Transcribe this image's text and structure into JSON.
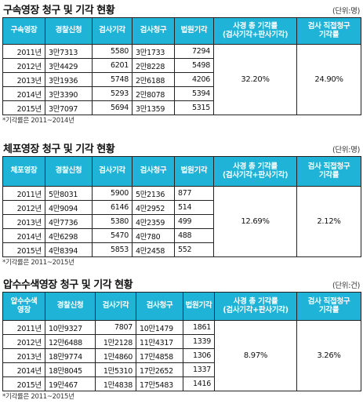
{
  "sections": [
    {
      "title": "구속영장 청구 및 기각 현황",
      "unit": "(단위:명)",
      "headers": [
        "구속영장",
        "경찰신청",
        "검사기각",
        "검사청구",
        "법원기각",
        "사경 총 기각률\n(검사기각+판사기각)",
        "검사 직접청구\n기각률"
      ],
      "rows": [
        [
          "2011년",
          "3만7313",
          "5580",
          "3만1733",
          "7294"
        ],
        [
          "2012년",
          "3만4429",
          "6201",
          "2만8228",
          "5498"
        ],
        [
          "2013년",
          "3만1936",
          "5748",
          "2만6188",
          "4206"
        ],
        [
          "2014년",
          "3만3390",
          "5293",
          "2만8078",
          "5394"
        ],
        [
          "2015년",
          "3만7097",
          "5694",
          "3만1359",
          "5315"
        ]
      ],
      "total_rate": "32.20%",
      "direct_rate": "24.90%",
      "note": "*기각률은 2011~2014년"
    },
    {
      "title": "체포영장 청구 및 기각 현황",
      "unit": "(단위:명)",
      "headers": [
        "체포영장",
        "경찰신청",
        "검사기각",
        "검사청구",
        "법원기각",
        "사경 총 기각률\n(검사기각+판사기각)",
        "검사 직접청구\n기각률"
      ],
      "rows": [
        [
          "2011년",
          "5만8031",
          "5900",
          "5만2136",
          "877"
        ],
        [
          "2012년",
          "4만9094",
          "6146",
          "4만2952",
          "514"
        ],
        [
          "2013년",
          "4만7736",
          "5380",
          "4만2359",
          "499"
        ],
        [
          "2014년",
          "4만6298",
          "5470",
          "4만780",
          "488"
        ],
        [
          "2015년",
          "4만8394",
          "5853",
          "4만2458",
          "552"
        ]
      ],
      "total_rate": "12.69%",
      "direct_rate": "2.12%",
      "note": "*기각률은 2011~2015년"
    },
    {
      "title": "압수수색영장 청구 및 기각 현황",
      "unit": "(단위:건)",
      "headers": [
        "압수수색\n영장",
        "경찰신청",
        "검사기각",
        "검사청구",
        "법원기각",
        "사경 총 기각률\n(검사기각+판사기각)",
        "검사 직접청구\n기각률"
      ],
      "rows": [
        [
          "2011년",
          "10만9327",
          "7807",
          "10만1479",
          "1861"
        ],
        [
          "2012년",
          "12만6488",
          "1만2128",
          "11만4317",
          "1339"
        ],
        [
          "2013년",
          "18만9774",
          "1만4860",
          "17만4858",
          "1306"
        ],
        [
          "2014년",
          "18만8045",
          "1만5310",
          "17만2652",
          "1337"
        ],
        [
          "2015년",
          "19만467",
          "1만4838",
          "17만5483",
          "1416"
        ]
      ],
      "total_rate": "8.97%",
      "direct_rate": "3.26%",
      "note": "*기각률은 2011~2015년"
    }
  ],
  "colors": {
    "header_bg": "#1fb3d7",
    "header_text": "#ffffff",
    "border": "#222222"
  }
}
